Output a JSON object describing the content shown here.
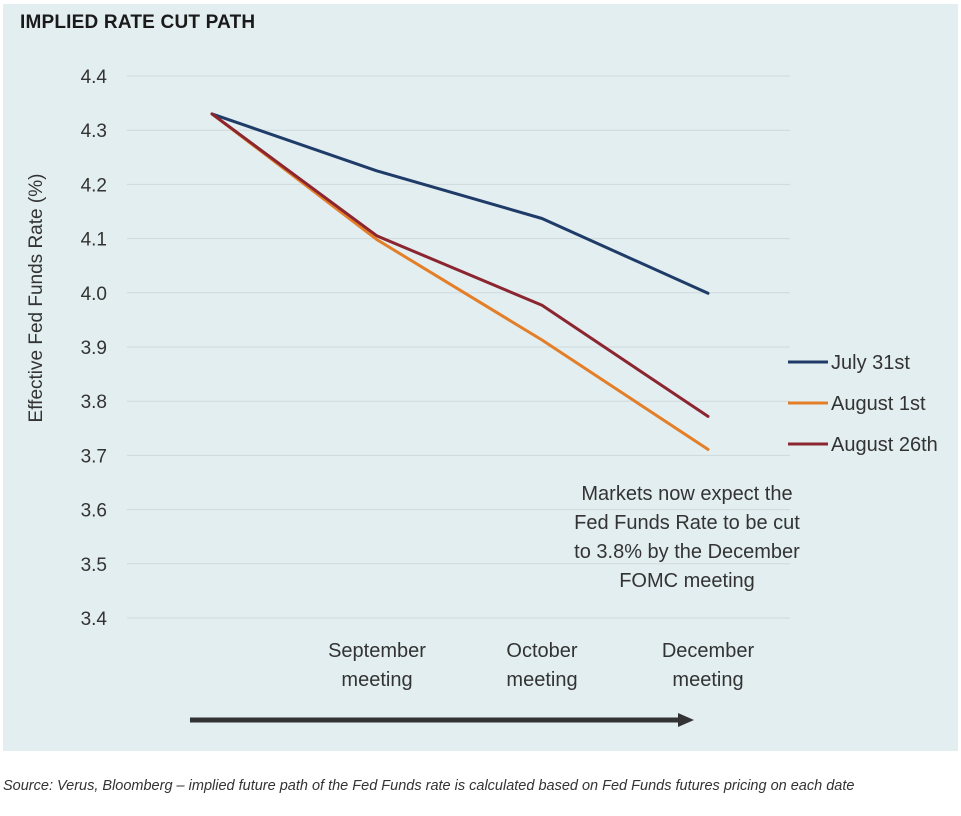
{
  "chart_data": {
    "type": "line",
    "title": "IMPLIED RATE CUT PATH",
    "xlabel": "",
    "ylabel": "Effective Fed Funds Rate (%)",
    "ylim": [
      3.4,
      4.4
    ],
    "yticks": [
      "4.4",
      "4.3",
      "4.2",
      "4.1",
      "4.0",
      "3.9",
      "3.8",
      "3.7",
      "3.6",
      "3.5",
      "3.4"
    ],
    "categories": [
      "",
      "September meeting",
      "October meeting",
      "December meeting"
    ],
    "category_lines": [
      [
        ""
      ],
      [
        "September",
        "meeting"
      ],
      [
        "October",
        "meeting"
      ],
      [
        "December",
        "meeting"
      ]
    ],
    "grid": true,
    "legend": "right",
    "series": [
      {
        "name": "July 31st",
        "color": "#1f3b68",
        "values": [
          4.33,
          4.225,
          4.137,
          3.999
        ]
      },
      {
        "name": "August 1st",
        "color": "#e37f29",
        "values": [
          4.33,
          4.098,
          3.913,
          3.711
        ]
      },
      {
        "name": "August 26th",
        "color": "#8b2530",
        "values": [
          4.33,
          4.105,
          3.977,
          3.772
        ]
      }
    ],
    "annotation": [
      "Markets now expect the",
      "Fed Funds Rate to be cut",
      "to 3.8% by the December",
      "FOMC meeting"
    ],
    "colors": {
      "background": "#e3eef1",
      "grid": "#cfd9dc",
      "arrow": "#333333"
    }
  },
  "source_note": "Source: Verus, Bloomberg – implied future path of the Fed Funds rate is calculated based on Fed Funds futures pricing on each date"
}
